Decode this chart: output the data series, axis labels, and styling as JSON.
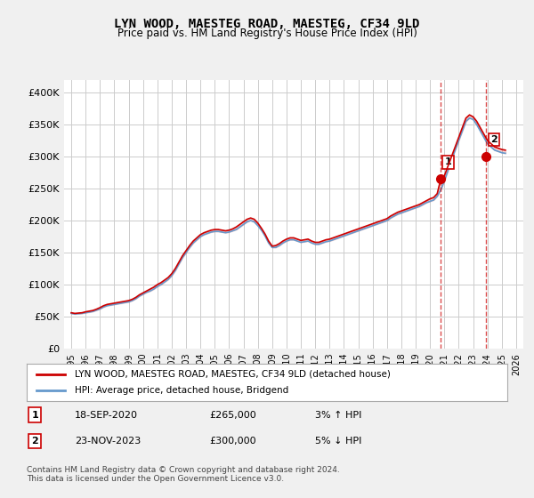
{
  "title": "LYN WOOD, MAESTEG ROAD, MAESTEG, CF34 9LD",
  "subtitle": "Price paid vs. HM Land Registry's House Price Index (HPI)",
  "xlabel": "",
  "ylabel": "",
  "ylim": [
    0,
    420000
  ],
  "yticks": [
    0,
    50000,
    100000,
    150000,
    200000,
    250000,
    300000,
    350000,
    400000
  ],
  "ytick_labels": [
    "£0",
    "£50K",
    "£100K",
    "£150K",
    "£200K",
    "£250K",
    "£300K",
    "£350K",
    "£400K"
  ],
  "background_color": "#f0f0f0",
  "plot_bg_color": "#ffffff",
  "grid_color": "#cccccc",
  "line1_color": "#cc0000",
  "line2_color": "#6699cc",
  "transaction1": {
    "date": "18-SEP-2020",
    "price": 265000,
    "hpi_pct": "3%",
    "direction": "↑",
    "label": "1"
  },
  "transaction2": {
    "date": "23-NOV-2023",
    "price": 300000,
    "hpi_pct": "5%",
    "direction": "↓",
    "label": "2"
  },
  "legend_line1": "LYN WOOD, MAESTEG ROAD, MAESTEG, CF34 9LD (detached house)",
  "legend_line2": "HPI: Average price, detached house, Bridgend",
  "footer": "Contains HM Land Registry data © Crown copyright and database right 2024.\nThis data is licensed under the Open Government Licence v3.0.",
  "hpi_data": {
    "dates": [
      1995.0,
      1995.25,
      1995.5,
      1995.75,
      1996.0,
      1996.25,
      1996.5,
      1996.75,
      1997.0,
      1997.25,
      1997.5,
      1997.75,
      1998.0,
      1998.25,
      1998.5,
      1998.75,
      1999.0,
      1999.25,
      1999.5,
      1999.75,
      2000.0,
      2000.25,
      2000.5,
      2000.75,
      2001.0,
      2001.25,
      2001.5,
      2001.75,
      2002.0,
      2002.25,
      2002.5,
      2002.75,
      2003.0,
      2003.25,
      2003.5,
      2003.75,
      2004.0,
      2004.25,
      2004.5,
      2004.75,
      2005.0,
      2005.25,
      2005.5,
      2005.75,
      2006.0,
      2006.25,
      2006.5,
      2006.75,
      2007.0,
      2007.25,
      2007.5,
      2007.75,
      2008.0,
      2008.25,
      2008.5,
      2008.75,
      2009.0,
      2009.25,
      2009.5,
      2009.75,
      2010.0,
      2010.25,
      2010.5,
      2010.75,
      2011.0,
      2011.25,
      2011.5,
      2011.75,
      2012.0,
      2012.25,
      2012.5,
      2012.75,
      2013.0,
      2013.25,
      2013.5,
      2013.75,
      2014.0,
      2014.25,
      2014.5,
      2014.75,
      2015.0,
      2015.25,
      2015.5,
      2015.75,
      2016.0,
      2016.25,
      2016.5,
      2016.75,
      2017.0,
      2017.25,
      2017.5,
      2017.75,
      2018.0,
      2018.25,
      2018.5,
      2018.75,
      2019.0,
      2019.25,
      2019.5,
      2019.75,
      2020.0,
      2020.25,
      2020.5,
      2020.75,
      2021.0,
      2021.25,
      2021.5,
      2021.75,
      2022.0,
      2022.25,
      2022.5,
      2022.75,
      2023.0,
      2023.25,
      2023.5,
      2023.75,
      2024.0,
      2024.25,
      2024.5,
      2024.75,
      2025.0,
      2025.25
    ],
    "hpi_values": [
      55000,
      54000,
      54500,
      55000,
      56000,
      57000,
      58000,
      60000,
      62000,
      65000,
      67000,
      68000,
      69000,
      70000,
      71000,
      72000,
      73000,
      75000,
      78000,
      82000,
      85000,
      88000,
      90000,
      93000,
      97000,
      100000,
      104000,
      108000,
      114000,
      122000,
      132000,
      142000,
      150000,
      158000,
      165000,
      170000,
      175000,
      178000,
      180000,
      182000,
      183000,
      183000,
      182000,
      181000,
      182000,
      184000,
      186000,
      190000,
      194000,
      198000,
      200000,
      198000,
      192000,
      185000,
      176000,
      165000,
      158000,
      158000,
      161000,
      165000,
      168000,
      170000,
      170000,
      168000,
      166000,
      167000,
      168000,
      165000,
      163000,
      163000,
      165000,
      167000,
      168000,
      170000,
      172000,
      174000,
      176000,
      178000,
      180000,
      182000,
      184000,
      186000,
      188000,
      190000,
      192000,
      194000,
      196000,
      198000,
      200000,
      204000,
      207000,
      210000,
      212000,
      214000,
      216000,
      218000,
      220000,
      222000,
      225000,
      228000,
      230000,
      232000,
      238000,
      248000,
      262000,
      278000,
      295000,
      310000,
      325000,
      340000,
      355000,
      360000,
      358000,
      350000,
      340000,
      330000,
      320000,
      315000,
      310000,
      308000,
      306000,
      305000
    ],
    "red_values": [
      56000,
      55000,
      55500,
      56000,
      57500,
      58500,
      59500,
      61500,
      64000,
      67000,
      69000,
      70000,
      71000,
      72000,
      73000,
      74000,
      75000,
      77000,
      80000,
      84000,
      87000,
      90000,
      93000,
      96000,
      100000,
      103000,
      107000,
      111000,
      117000,
      125000,
      135000,
      145000,
      153000,
      161000,
      168000,
      173000,
      178000,
      181000,
      183000,
      185000,
      186000,
      186000,
      185000,
      184000,
      185000,
      187000,
      190000,
      194000,
      198000,
      202000,
      204000,
      202000,
      196000,
      188000,
      179000,
      168000,
      160000,
      161000,
      164000,
      168000,
      171000,
      173000,
      173000,
      171000,
      169000,
      170000,
      171000,
      168000,
      166000,
      166000,
      168000,
      170000,
      171000,
      173000,
      175000,
      177000,
      179000,
      181000,
      183000,
      185000,
      187000,
      189000,
      191000,
      193000,
      195000,
      197000,
      199000,
      201000,
      203000,
      207000,
      210000,
      213000,
      215000,
      217000,
      219000,
      221000,
      223000,
      225000,
      228000,
      231000,
      234000,
      236000,
      242000,
      265000,
      270000,
      285000,
      300000,
      315000,
      330000,
      345000,
      360000,
      365000,
      362000,
      355000,
      345000,
      335000,
      325000,
      320000,
      315000,
      313000,
      311000,
      310000
    ]
  },
  "transaction1_x": 2020.72,
  "transaction2_x": 2023.9,
  "xlim_left": 1994.5,
  "xlim_right": 2026.5,
  "xticks": [
    1995,
    1996,
    1997,
    1998,
    1999,
    2000,
    2001,
    2002,
    2003,
    2004,
    2005,
    2006,
    2007,
    2008,
    2009,
    2010,
    2011,
    2012,
    2013,
    2014,
    2015,
    2016,
    2017,
    2018,
    2019,
    2020,
    2021,
    2022,
    2023,
    2024,
    2025,
    2026
  ]
}
